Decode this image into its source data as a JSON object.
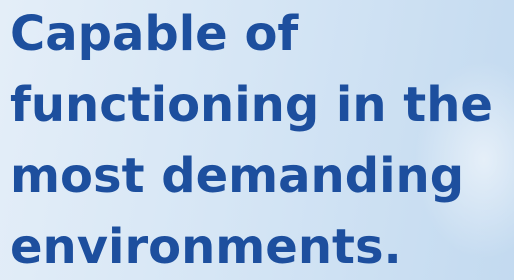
{
  "headline": {
    "lines": [
      "Capable of",
      "functioning in the",
      "most demanding",
      "environments."
    ]
  }
}
